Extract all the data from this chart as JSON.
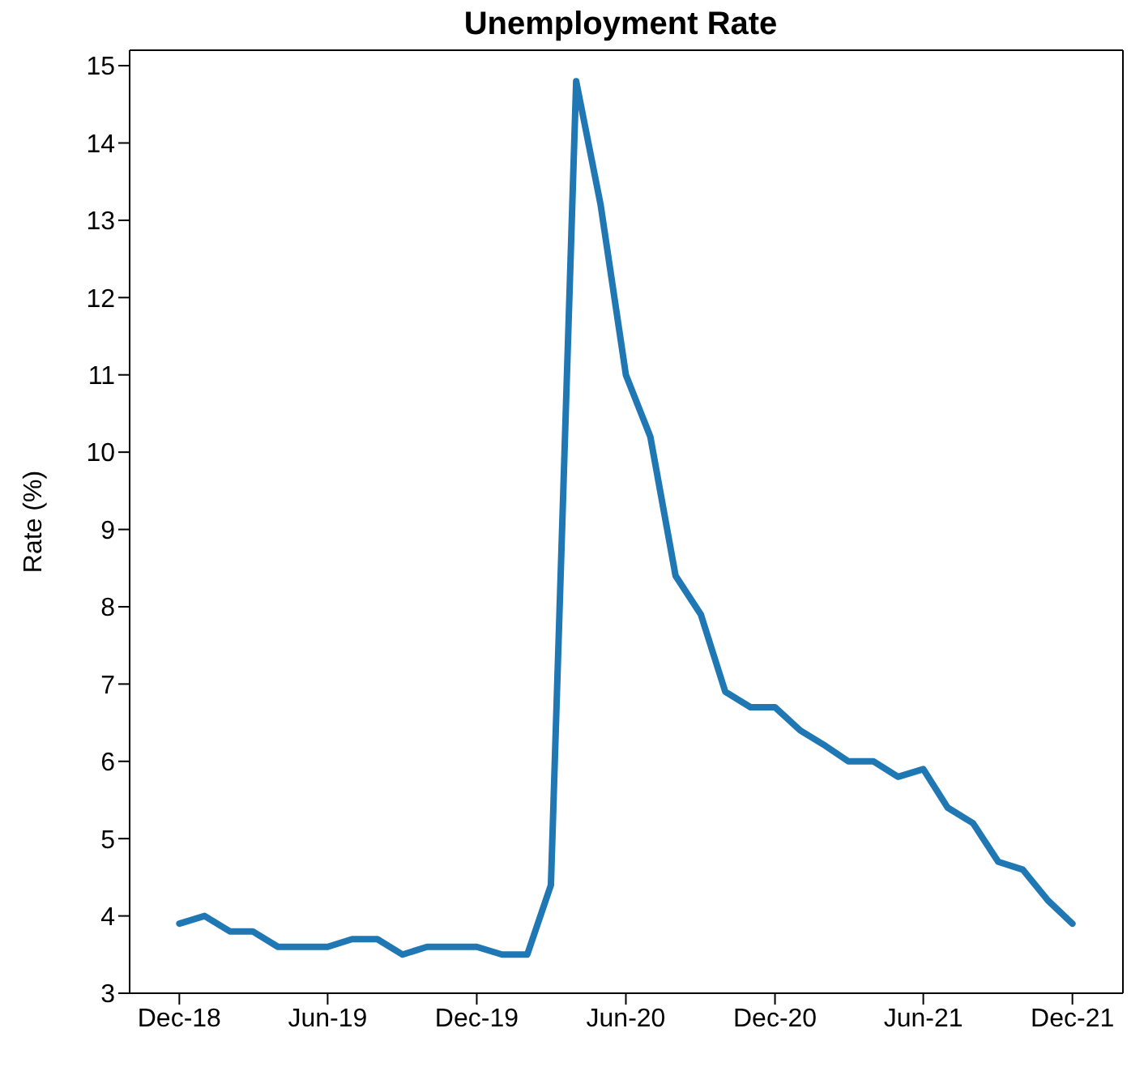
{
  "chart_data": {
    "type": "line",
    "title": "Unemployment Rate",
    "ylabel": "Rate (%)",
    "x": [
      "2018-12",
      "2019-01",
      "2019-02",
      "2019-03",
      "2019-04",
      "2019-05",
      "2019-06",
      "2019-07",
      "2019-08",
      "2019-09",
      "2019-10",
      "2019-11",
      "2019-12",
      "2020-01",
      "2020-02",
      "2020-03",
      "2020-04",
      "2020-05",
      "2020-06",
      "2020-07",
      "2020-08",
      "2020-09",
      "2020-10",
      "2020-11",
      "2020-12",
      "2021-01",
      "2021-02",
      "2021-03",
      "2021-04",
      "2021-05",
      "2021-06",
      "2021-07",
      "2021-08",
      "2021-09",
      "2021-10",
      "2021-11",
      "2021-12"
    ],
    "series": [
      {
        "color": "#1f77b4",
        "values": [
          3.9,
          4.0,
          3.8,
          3.8,
          3.6,
          3.6,
          3.6,
          3.7,
          3.7,
          3.5,
          3.6,
          3.6,
          3.6,
          3.5,
          3.5,
          4.4,
          14.8,
          13.2,
          11.0,
          10.2,
          8.4,
          7.9,
          6.9,
          6.7,
          6.7,
          6.4,
          6.2,
          6.0,
          6.0,
          5.8,
          5.9,
          5.4,
          5.2,
          4.7,
          4.6,
          4.2,
          3.9
        ]
      }
    ],
    "xlim": [
      "2018-10",
      "2022-02"
    ],
    "xticks": [
      {
        "value": "2018-12",
        "label": "Dec-18"
      },
      {
        "value": "2019-06",
        "label": "Jun-19"
      },
      {
        "value": "2019-12",
        "label": "Dec-19"
      },
      {
        "value": "2020-06",
        "label": "Jun-20"
      },
      {
        "value": "2020-12",
        "label": "Dec-20"
      },
      {
        "value": "2021-06",
        "label": "Jun-21"
      },
      {
        "value": "2021-12",
        "label": "Dec-21"
      }
    ],
    "ylim": [
      3,
      15.2
    ],
    "yticks": [
      3,
      4,
      5,
      6,
      7,
      8,
      9,
      10,
      11,
      12,
      13,
      14,
      15
    ],
    "grid": false,
    "legend": false,
    "marker": "none",
    "line_style": "solid"
  }
}
